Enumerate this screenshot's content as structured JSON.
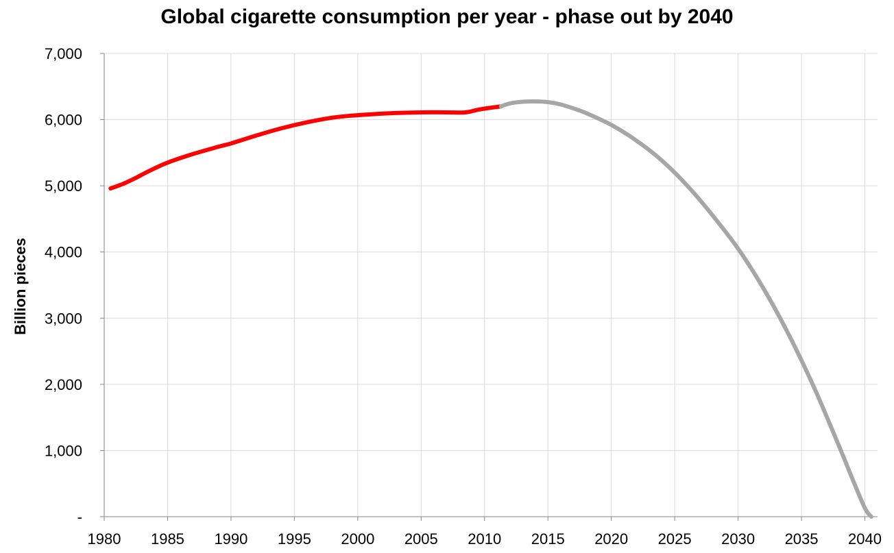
{
  "chart_data": {
    "type": "line",
    "title": "Global cigarette consumption per year - phase out by 2040",
    "xlabel": "",
    "ylabel": "Billion pieces",
    "xlim": [
      1980,
      2041
    ],
    "ylim": [
      0,
      7000
    ],
    "x_ticks": [
      "1980",
      "1985",
      "1990",
      "1995",
      "2000",
      "2005",
      "2010",
      "2015",
      "2020",
      "2025",
      "2030",
      "2035",
      "2040"
    ],
    "y_ticks": [
      "-",
      "1,000",
      "2,000",
      "3,000",
      "4,000",
      "5,000",
      "6,000",
      "7,000"
    ],
    "grid": true,
    "legend": "none",
    "series": [
      {
        "color": "#ff0000",
        "x": [
          1980.5,
          1981.5,
          1982.5,
          1983.5,
          1985,
          1987,
          1989,
          1990,
          1992,
          1994,
          1996,
          1998,
          1999.5,
          2001,
          2003,
          2005,
          2007,
          2008.5,
          2009.5,
          2010.5,
          2011.3
        ],
        "y": [
          4960,
          5030,
          5120,
          5220,
          5350,
          5480,
          5590,
          5640,
          5760,
          5870,
          5960,
          6030,
          6060,
          6080,
          6100,
          6110,
          6110,
          6110,
          6150,
          6180,
          6200
        ]
      },
      {
        "color": "#a6a6a6",
        "x": [
          2011.3,
          2012,
          2013,
          2014,
          2015,
          2016,
          2017,
          2018,
          2020,
          2022,
          2024,
          2026,
          2028,
          2030,
          2032,
          2034,
          2036,
          2038,
          2039,
          2040,
          2040.5
        ],
        "y": [
          6200,
          6245,
          6270,
          6275,
          6265,
          6230,
          6170,
          6100,
          5920,
          5680,
          5380,
          5000,
          4550,
          4050,
          3450,
          2750,
          1950,
          1050,
          580,
          130,
          0
        ]
      }
    ]
  }
}
